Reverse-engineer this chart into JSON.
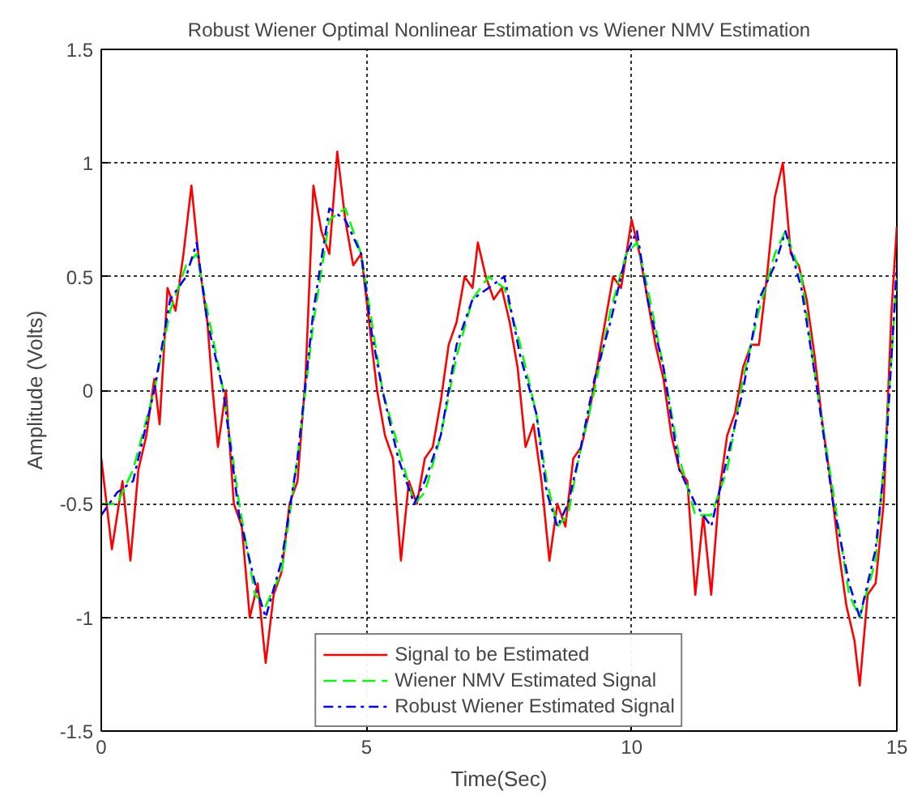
{
  "chart_data": {
    "type": "line",
    "title": "Robust Wiener Optimal Nonlinear Estimation vs Wiener NMV Estimation",
    "xlabel": "Time(Sec)",
    "ylabel": "Amplitude (Volts)",
    "xlim": [
      0,
      15
    ],
    "ylim": [
      -1.5,
      1.5
    ],
    "xticks": [
      0,
      5,
      10,
      15
    ],
    "yticks": [
      -1.5,
      -1,
      -0.5,
      0,
      0.5,
      1,
      1.5
    ],
    "grid": true,
    "legend": "bottom",
    "series": [
      {
        "name": "Signal to be Estimated",
        "color": "#ff0000",
        "line_style": "solid",
        "x": [
          0.0,
          0.2,
          0.4,
          0.55,
          0.7,
          0.85,
          1.0,
          1.1,
          1.25,
          1.4,
          1.55,
          1.7,
          1.85,
          2.0,
          2.1,
          2.2,
          2.35,
          2.5,
          2.65,
          2.8,
          2.95,
          3.1,
          3.25,
          3.4,
          3.55,
          3.7,
          3.85,
          4.0,
          4.15,
          4.3,
          4.45,
          4.6,
          4.75,
          4.9,
          5.05,
          5.2,
          5.35,
          5.5,
          5.65,
          5.8,
          5.95,
          6.1,
          6.25,
          6.4,
          6.55,
          6.7,
          6.85,
          7.0,
          7.1,
          7.25,
          7.4,
          7.55,
          7.7,
          7.85,
          8.0,
          8.15,
          8.3,
          8.45,
          8.6,
          8.75,
          8.9,
          9.05,
          9.2,
          9.35,
          9.5,
          9.65,
          9.8,
          10.0,
          10.15,
          10.3,
          10.45,
          10.6,
          10.75,
          10.9,
          11.05,
          11.2,
          11.35,
          11.5,
          11.65,
          11.8,
          11.95,
          12.1,
          12.25,
          12.4,
          12.55,
          12.7,
          12.85,
          13.0,
          13.15,
          13.3,
          13.45,
          13.6,
          13.75,
          13.9,
          14.05,
          14.2,
          14.3,
          14.45,
          14.6,
          14.75,
          14.9,
          15.0
        ],
        "values": [
          -0.3,
          -0.7,
          -0.4,
          -0.75,
          -0.35,
          -0.2,
          0.05,
          -0.15,
          0.45,
          0.35,
          0.6,
          0.9,
          0.55,
          0.3,
          0.0,
          -0.25,
          0.0,
          -0.5,
          -0.6,
          -1.0,
          -0.85,
          -1.2,
          -0.9,
          -0.8,
          -0.5,
          -0.4,
          0.05,
          0.9,
          0.7,
          0.6,
          1.05,
          0.75,
          0.55,
          0.6,
          0.3,
          0.0,
          -0.2,
          -0.3,
          -0.75,
          -0.4,
          -0.5,
          -0.3,
          -0.25,
          -0.05,
          0.2,
          0.3,
          0.5,
          0.45,
          0.65,
          0.5,
          0.4,
          0.45,
          0.3,
          0.1,
          -0.25,
          -0.15,
          -0.4,
          -0.75,
          -0.5,
          -0.6,
          -0.3,
          -0.25,
          -0.1,
          0.1,
          0.3,
          0.5,
          0.45,
          0.75,
          0.6,
          0.4,
          0.2,
          0.05,
          -0.2,
          -0.35,
          -0.4,
          -0.9,
          -0.55,
          -0.9,
          -0.45,
          -0.2,
          -0.1,
          0.1,
          0.2,
          0.2,
          0.5,
          0.85,
          1.0,
          0.6,
          0.55,
          0.4,
          0.15,
          -0.15,
          -0.4,
          -0.7,
          -0.95,
          -1.1,
          -1.3,
          -0.9,
          -0.85,
          -0.5,
          0.35,
          0.72
        ]
      },
      {
        "name": "Wiener NMV Estimated Signal",
        "color": "#00ff00",
        "line_style": "dashed",
        "x": [
          0,
          0.3,
          0.6,
          1.0,
          1.3,
          1.6,
          1.8,
          2.0,
          2.3,
          2.6,
          2.9,
          3.1,
          3.4,
          3.7,
          4.0,
          4.3,
          4.6,
          4.9,
          5.1,
          5.3,
          5.6,
          5.9,
          6.1,
          6.4,
          6.7,
          7.0,
          7.3,
          7.6,
          7.9,
          8.2,
          8.4,
          8.6,
          8.8,
          9.0,
          9.3,
          9.6,
          9.9,
          10.1,
          10.3,
          10.6,
          10.9,
          11.2,
          11.5,
          11.8,
          12.1,
          12.4,
          12.7,
          12.9,
          13.2,
          13.5,
          13.8,
          14.1,
          14.3,
          14.6,
          14.8,
          15.0
        ],
        "values": [
          -0.5,
          -0.5,
          -0.35,
          0.0,
          0.35,
          0.55,
          0.6,
          0.35,
          0.0,
          -0.5,
          -0.9,
          -0.95,
          -0.8,
          -0.3,
          0.3,
          0.75,
          0.8,
          0.6,
          0.3,
          0.0,
          -0.25,
          -0.5,
          -0.45,
          -0.2,
          0.15,
          0.4,
          0.5,
          0.45,
          0.2,
          -0.1,
          -0.4,
          -0.6,
          -0.55,
          -0.3,
          0.0,
          0.35,
          0.6,
          0.65,
          0.45,
          0.1,
          -0.3,
          -0.55,
          -0.55,
          -0.35,
          0.05,
          0.35,
          0.6,
          0.7,
          0.5,
          0.0,
          -0.45,
          -0.9,
          -1.0,
          -0.75,
          -0.2,
          0.5
        ]
      },
      {
        "name": "Robust Wiener Estimated Signal",
        "color": "#0000ff",
        "line_style": "dashdot",
        "x": [
          0,
          0.3,
          0.6,
          1.0,
          1.3,
          1.6,
          1.8,
          2.0,
          2.3,
          2.6,
          2.9,
          3.1,
          3.4,
          3.7,
          4.0,
          4.3,
          4.6,
          4.9,
          5.1,
          5.3,
          5.6,
          5.9,
          6.1,
          6.4,
          6.7,
          7.0,
          7.3,
          7.6,
          7.9,
          8.2,
          8.4,
          8.6,
          8.8,
          9.0,
          9.3,
          9.6,
          9.9,
          10.1,
          10.3,
          10.6,
          10.9,
          11.2,
          11.5,
          11.8,
          12.1,
          12.4,
          12.7,
          12.9,
          13.2,
          13.5,
          13.8,
          14.1,
          14.3,
          14.6,
          14.8,
          15.0
        ],
        "values": [
          -0.55,
          -0.45,
          -0.4,
          0.0,
          0.4,
          0.5,
          0.65,
          0.3,
          0.0,
          -0.55,
          -0.85,
          -1.0,
          -0.75,
          -0.3,
          0.35,
          0.8,
          0.75,
          0.6,
          0.25,
          0.0,
          -0.3,
          -0.5,
          -0.4,
          -0.2,
          0.2,
          0.4,
          0.45,
          0.5,
          0.15,
          -0.1,
          -0.45,
          -0.6,
          -0.5,
          -0.3,
          0.05,
          0.3,
          0.6,
          0.7,
          0.4,
          0.1,
          -0.35,
          -0.5,
          -0.6,
          -0.3,
          0.0,
          0.4,
          0.55,
          0.7,
          0.45,
          0.0,
          -0.5,
          -0.85,
          -1.0,
          -0.7,
          -0.25,
          0.55
        ]
      }
    ]
  }
}
